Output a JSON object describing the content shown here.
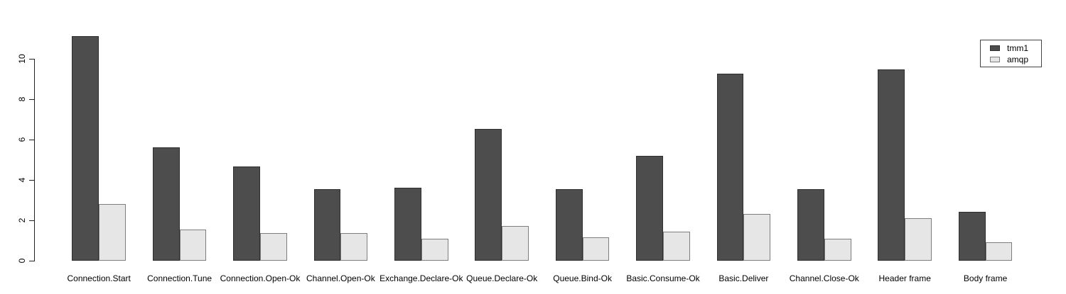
{
  "chart_data": {
    "type": "bar",
    "title": "",
    "xlabel": "",
    "ylabel": "",
    "categories": [
      "Connection.Start",
      "Connection.Tune",
      "Connection.Open-Ok",
      "Channel.Open-Ok",
      "Exchange.Declare-Ok",
      "Queue.Declare-Ok",
      "Queue.Bind-Ok",
      "Basic.Consume-Ok",
      "Basic.Deliver",
      "Channel.Close-Ok",
      "Header frame",
      "Body frame"
    ],
    "series": [
      {
        "name": "tmm1",
        "fill": "#4D4D4D",
        "border": "#2E2E2E",
        "values": [
          11.1,
          5.6,
          4.65,
          3.55,
          3.6,
          6.5,
          3.55,
          5.2,
          9.25,
          3.55,
          9.45,
          2.4
        ]
      },
      {
        "name": "amqp",
        "fill": "#E6E6E6",
        "border": "#7D7D7D",
        "values": [
          2.8,
          1.55,
          1.35,
          1.35,
          1.1,
          1.7,
          1.15,
          1.45,
          2.3,
          1.1,
          2.1,
          0.9
        ]
      }
    ],
    "yticks": [
      0,
      2,
      4,
      6,
      8,
      10
    ],
    "ylim": [
      0,
      11.6
    ],
    "grid": false,
    "legend_position": "top-right",
    "axis_color": "#222222",
    "text_color": "#000000",
    "background_color": "#FFFFFF"
  }
}
